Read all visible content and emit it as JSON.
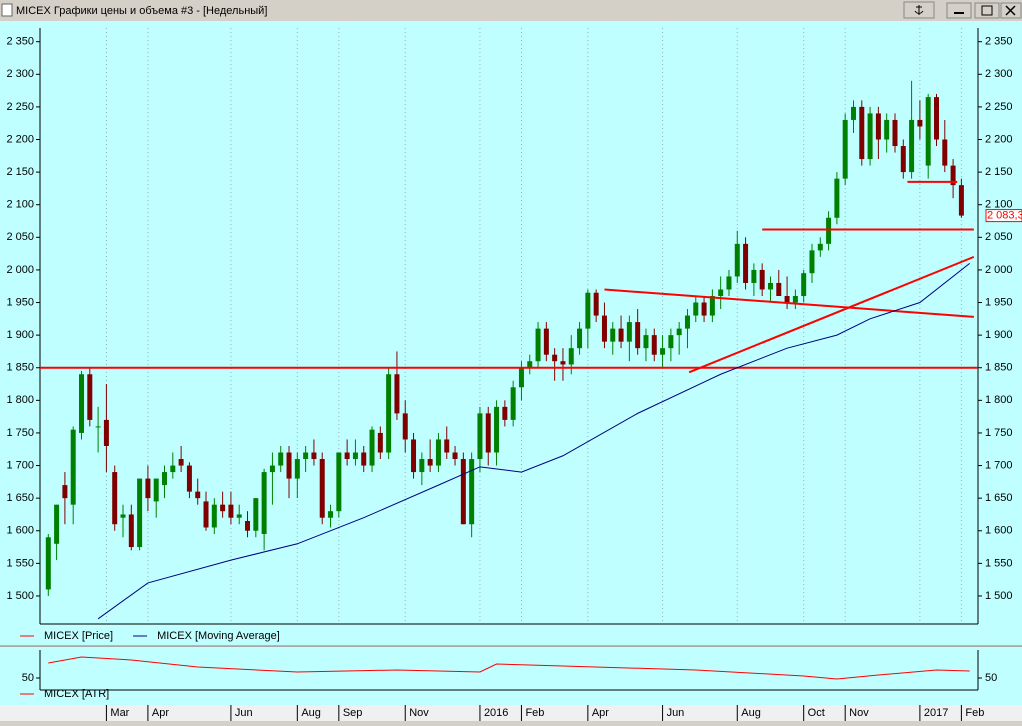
{
  "window": {
    "title": "MICEX Графики цены и объема #3 - [Недельный]"
  },
  "chart_data": [
    {
      "type": "candlestick",
      "xlim": [
        -1,
        112
      ],
      "ylim": [
        1457,
        2371
      ],
      "yticks": [
        {
          "value": 1500,
          "label": "1 500"
        },
        {
          "value": 1550,
          "label": "1 550"
        },
        {
          "value": 1600,
          "label": "1 600"
        },
        {
          "value": 1650,
          "label": "1 650"
        },
        {
          "value": 1700,
          "label": "1 700"
        },
        {
          "value": 1750,
          "label": "1 750"
        },
        {
          "value": 1800,
          "label": "1 800"
        },
        {
          "value": 1850,
          "label": "1 850"
        },
        {
          "value": 1900,
          "label": "1 900"
        },
        {
          "value": 1950,
          "label": "1 950"
        },
        {
          "value": 2000,
          "label": "2 000"
        },
        {
          "value": 2050,
          "label": "2 050"
        },
        {
          "value": 2100,
          "label": "2 100"
        },
        {
          "value": 2150,
          "label": "2 150"
        },
        {
          "value": 2200,
          "label": "2 200"
        },
        {
          "value": 2250,
          "label": "2 250"
        },
        {
          "value": 2300,
          "label": "2 300"
        },
        {
          "value": 2350,
          "label": "2 350"
        }
      ],
      "xticks": [
        {
          "value": 7,
          "label": "Mar"
        },
        {
          "value": 12,
          "label": "Apr"
        },
        {
          "value": 22,
          "label": "Jun"
        },
        {
          "value": 30,
          "label": "Aug"
        },
        {
          "value": 35,
          "label": "Sep"
        },
        {
          "value": 43,
          "label": "Nov"
        },
        {
          "value": 52,
          "label": "2016"
        },
        {
          "value": 57,
          "label": "Feb"
        },
        {
          "value": 65,
          "label": "Apr"
        },
        {
          "value": 74,
          "label": "Jun"
        },
        {
          "value": 83,
          "label": "Aug"
        },
        {
          "value": 91,
          "label": "Oct"
        },
        {
          "value": 96,
          "label": "Nov"
        },
        {
          "value": 105,
          "label": "2017"
        },
        {
          "value": 110,
          "label": "Feb"
        }
      ],
      "grid": true,
      "last_price": {
        "value": 2083.3,
        "label": "2 083,3"
      },
      "series": [
        {
          "name": "MICEX [Price]",
          "color": "#ff0000",
          "up_color": "#008000",
          "down_color": "#800000",
          "open": [
            1510,
            1580,
            1670,
            1640,
            1750,
            1840,
            1760,
            1770,
            1690,
            1620,
            1625,
            1575,
            1680,
            1645,
            1670,
            1690,
            1710,
            1700,
            1660,
            1645,
            1605,
            1640,
            1640,
            1620,
            1615,
            1600,
            1595,
            1690,
            1700,
            1720,
            1680,
            1710,
            1720,
            1710,
            1620,
            1630,
            1720,
            1710,
            1720,
            1700,
            1750,
            1720,
            1840,
            1780,
            1740,
            1690,
            1710,
            1700,
            1740,
            1720,
            1710,
            1610,
            1710,
            1780,
            1720,
            1790,
            1770,
            1820,
            1850,
            1860,
            1910,
            1870,
            1860,
            1855,
            1880,
            1910,
            1965,
            1930,
            1890,
            1910,
            1890,
            1920,
            1880,
            1900,
            1870,
            1880,
            1900,
            1910,
            1930,
            1950,
            1930,
            1960,
            1970,
            1990,
            2040,
            1980,
            2000,
            1970,
            1980,
            1960,
            1950,
            1960,
            1995,
            2030,
            2040,
            2080,
            2140,
            2230,
            2250,
            2170,
            2240,
            2200,
            2230,
            2190,
            2150,
            2230,
            2160,
            2265,
            2200,
            2160,
            2130
          ],
          "high": [
            1595,
            1640,
            1690,
            1760,
            1845,
            1850,
            1790,
            1825,
            1700,
            1640,
            1640,
            1680,
            1700,
            1680,
            1700,
            1720,
            1730,
            1705,
            1680,
            1660,
            1650,
            1660,
            1660,
            1640,
            1630,
            1650,
            1695,
            1720,
            1730,
            1730,
            1720,
            1730,
            1740,
            1720,
            1640,
            1720,
            1740,
            1740,
            1730,
            1760,
            1760,
            1850,
            1875,
            1800,
            1750,
            1720,
            1740,
            1750,
            1760,
            1730,
            1720,
            1720,
            1790,
            1790,
            1800,
            1800,
            1830,
            1860,
            1870,
            1920,
            1920,
            1880,
            1880,
            1900,
            1920,
            1970,
            1970,
            1950,
            1920,
            1930,
            1930,
            1940,
            1910,
            1910,
            1900,
            1910,
            1920,
            1940,
            1960,
            1960,
            1970,
            1990,
            2000,
            2060,
            2050,
            2010,
            2010,
            1990,
            2000,
            1990,
            1970,
            2000,
            2040,
            2050,
            2090,
            2150,
            2240,
            2260,
            2260,
            2250,
            2250,
            2240,
            2240,
            2200,
            2290,
            2260,
            2270,
            2270,
            2230,
            2170,
            2140
          ],
          "low": [
            1500,
            1555,
            1610,
            1610,
            1740,
            1760,
            1720,
            1690,
            1600,
            1590,
            1570,
            1570,
            1630,
            1620,
            1650,
            1680,
            1690,
            1650,
            1640,
            1600,
            1595,
            1620,
            1610,
            1610,
            1590,
            1590,
            1570,
            1640,
            1690,
            1650,
            1650,
            1690,
            1700,
            1610,
            1605,
            1620,
            1700,
            1700,
            1690,
            1690,
            1710,
            1710,
            1770,
            1720,
            1680,
            1670,
            1690,
            1690,
            1710,
            1700,
            1610,
            1590,
            1690,
            1700,
            1700,
            1760,
            1760,
            1800,
            1840,
            1850,
            1860,
            1830,
            1830,
            1840,
            1870,
            1880,
            1920,
            1880,
            1870,
            1880,
            1860,
            1870,
            1860,
            1860,
            1850,
            1860,
            1870,
            1880,
            1920,
            1920,
            1920,
            1940,
            1960,
            1980,
            1970,
            1960,
            1960,
            1950,
            1960,
            1940,
            1940,
            1950,
            1980,
            2020,
            2030,
            2070,
            2130,
            2210,
            2160,
            2160,
            2170,
            2180,
            2180,
            2140,
            2140,
            2200,
            2140,
            2190,
            2150,
            2110,
            2080
          ],
          "close": [
            1590,
            1640,
            1650,
            1755,
            1840,
            1770,
            1760,
            1730,
            1610,
            1625,
            1575,
            1680,
            1650,
            1680,
            1690,
            1700,
            1700,
            1660,
            1650,
            1605,
            1640,
            1630,
            1620,
            1625,
            1600,
            1650,
            1690,
            1700,
            1720,
            1680,
            1710,
            1720,
            1710,
            1620,
            1630,
            1720,
            1710,
            1720,
            1700,
            1755,
            1720,
            1840,
            1780,
            1740,
            1690,
            1710,
            1700,
            1740,
            1720,
            1710,
            1610,
            1710,
            1780,
            1720,
            1790,
            1770,
            1820,
            1850,
            1860,
            1910,
            1870,
            1860,
            1855,
            1880,
            1910,
            1965,
            1930,
            1890,
            1910,
            1890,
            1920,
            1880,
            1900,
            1870,
            1880,
            1900,
            1910,
            1930,
            1950,
            1930,
            1960,
            1970,
            1990,
            2040,
            1980,
            2000,
            1970,
            1980,
            1960,
            1950,
            1960,
            1995,
            2030,
            2040,
            2080,
            2140,
            2230,
            2250,
            2170,
            2240,
            2200,
            2230,
            2190,
            2150,
            2230,
            2220,
            2265,
            2200,
            2160,
            2130,
            2083.3
          ]
        },
        {
          "name": "MICEX [Moving Average]",
          "color": "#000080",
          "x": [
            6,
            12,
            22,
            30,
            38,
            47,
            52,
            57,
            62,
            71,
            81,
            89,
            95,
            99,
            105,
            111
          ],
          "values": [
            1465,
            1520,
            1555,
            1580,
            1620,
            1670,
            1698,
            1690,
            1715,
            1780,
            1840,
            1880,
            1900,
            1925,
            1950,
            2010
          ]
        }
      ],
      "trend_lines": {
        "color": "#ff0000",
        "lines": [
          {
            "x": [
              -1,
              112
            ],
            "y": [
              1850,
              1850
            ]
          },
          {
            "x": [
              86,
              111.5
            ],
            "y": [
              2062,
              2062
            ]
          },
          {
            "x": [
              103.5,
              109.5
            ],
            "y": [
              2135,
              2135
            ]
          },
          {
            "x": [
              67,
              111.5
            ],
            "y": [
              1970,
              1928
            ]
          },
          {
            "x": [
              77.2,
              111.5
            ],
            "y": [
              1843,
              2020
            ]
          }
        ]
      }
    },
    {
      "type": "line",
      "xlim": [
        -1,
        112
      ],
      "ylim": [
        44,
        64
      ],
      "yticks": [
        50
      ],
      "series": [
        {
          "name": "MICEX [ATR]",
          "color": "#ff0000",
          "x": [
            0,
            4,
            10,
            18,
            30,
            42,
            52,
            54,
            62,
            78,
            91,
            95,
            100,
            107,
            111
          ],
          "values": [
            57.5,
            60.5,
            59,
            55.5,
            53,
            54,
            53,
            57,
            56,
            54,
            51,
            49.5,
            51.5,
            54,
            53.5
          ]
        }
      ]
    }
  ]
}
